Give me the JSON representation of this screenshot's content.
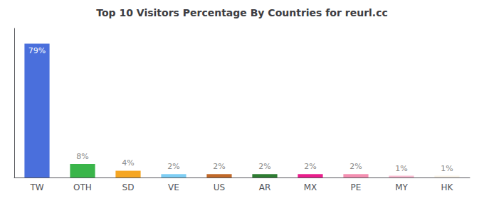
{
  "chart_data": {
    "type": "bar",
    "title": "Top 10 Visitors Percentage By Countries for reurl.cc",
    "categories": [
      "TW",
      "OTH",
      "SD",
      "VE",
      "US",
      "AR",
      "MX",
      "PE",
      "MY",
      "HK"
    ],
    "values": [
      79,
      8,
      4,
      2,
      2,
      2,
      2,
      2,
      1,
      1
    ],
    "value_labels": [
      "79%",
      "8%",
      "4%",
      "2%",
      "2%",
      "2%",
      "2%",
      "2%",
      "1%",
      "1%"
    ],
    "colors": [
      "#4a6fdc",
      "#3ab54a",
      "#f5a623",
      "#7ecef4",
      "#c0692a",
      "#2e7d32",
      "#e91e8c",
      "#f48fb1",
      "#f8bbd0",
      "#f9f3e8"
    ],
    "ylim": [
      0,
      88
    ],
    "grid": false,
    "data_labels": true,
    "tick_labels": "x"
  }
}
